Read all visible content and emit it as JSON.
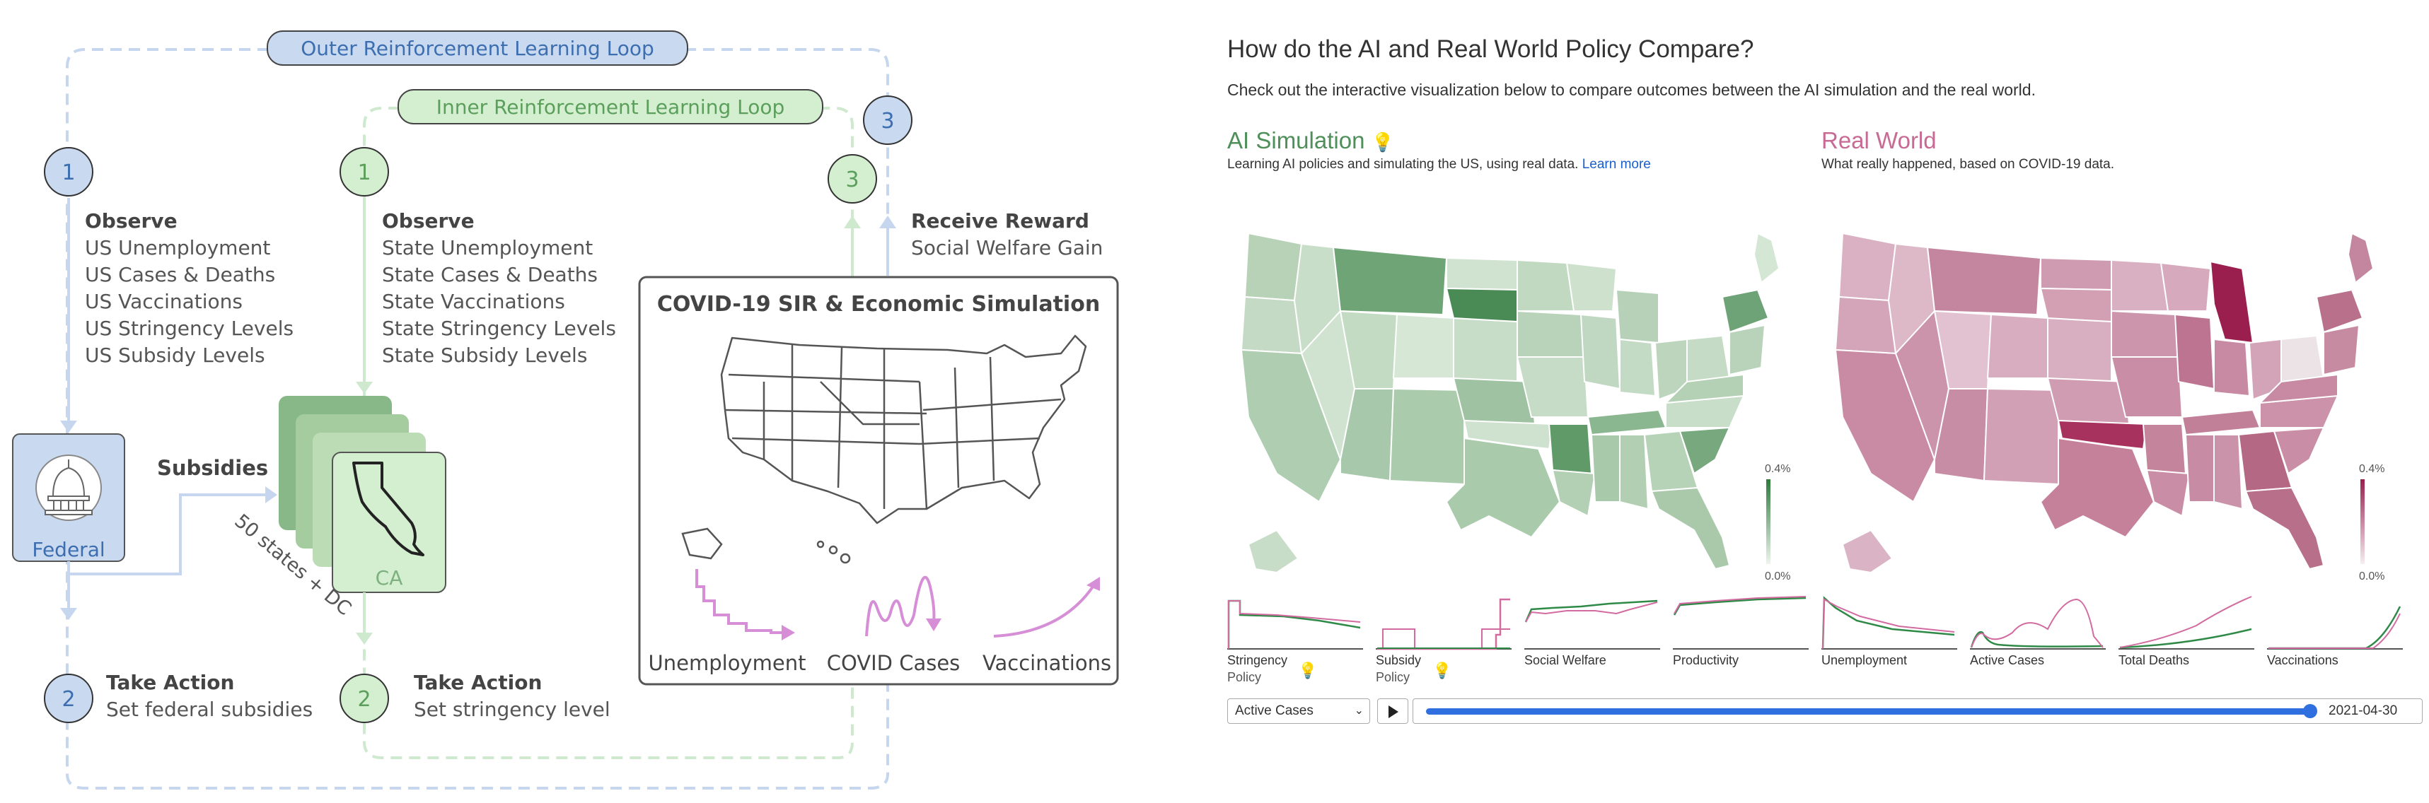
{
  "diagram": {
    "outer_loop_label": "Outer Reinforcement Learning Loop",
    "inner_loop_label": "Inner Reinforcement Learning Loop",
    "step1": "1",
    "step2": "2",
    "step3": "3",
    "federal": {
      "observe_title": "Observe",
      "observe_items": [
        "US Unemployment",
        "US Cases & Deaths",
        "US Vaccinations",
        "US Stringency Levels",
        "US Subsidy Levels"
      ],
      "label": "Federal",
      "action_title": "Take Action",
      "action_text": "Set federal subsidies"
    },
    "subsidies_label": "Subsidies",
    "states_label": "50 states + DC",
    "state_card_label": "CA",
    "state": {
      "observe_title": "Observe",
      "observe_items": [
        "State Unemployment",
        "State Cases & Deaths",
        "State Vaccinations",
        "State Stringency Levels",
        "State Subsidy Levels"
      ],
      "action_title": "Take Action",
      "action_text": "Set stringency level"
    },
    "reward_title": "Receive Reward",
    "reward_text": "Social Welfare Gain",
    "sim_title": "COVID-19 SIR & Economic Simulation",
    "sim_curves": [
      "Unemployment",
      "COVID Cases",
      "Vaccinations"
    ]
  },
  "panel": {
    "heading": "How do the AI and Real World Policy Compare?",
    "subheading": "Check out the interactive visualization below to compare outcomes between the AI simulation and the real world.",
    "ai_title": "AI Simulation",
    "ai_desc": "Learning AI policies and simulating the US, using real data.",
    "learn_more": "Learn more",
    "real_title": "Real World",
    "real_desc": "What really happened, based on COVID-19 data.",
    "legend_max": "0.4%",
    "legend_min": "0.0%",
    "colors": {
      "ai": "#4e8f5a",
      "real": "#a8325e",
      "accent": "#2f6fe0"
    },
    "sparklines": [
      {
        "label": "Stringency",
        "sub": "Policy",
        "has_icon": true
      },
      {
        "label": "Subsidy",
        "sub": "Policy",
        "has_icon": true
      },
      {
        "label": "Social Welfare"
      },
      {
        "label": "Productivity"
      },
      {
        "label": "Unemployment"
      },
      {
        "label": "Active Cases"
      },
      {
        "label": "Total Deaths"
      },
      {
        "label": "Vaccinations"
      }
    ],
    "select_value": "Active Cases",
    "date_value": "2021-04-30",
    "slider_progress": 1.0
  }
}
